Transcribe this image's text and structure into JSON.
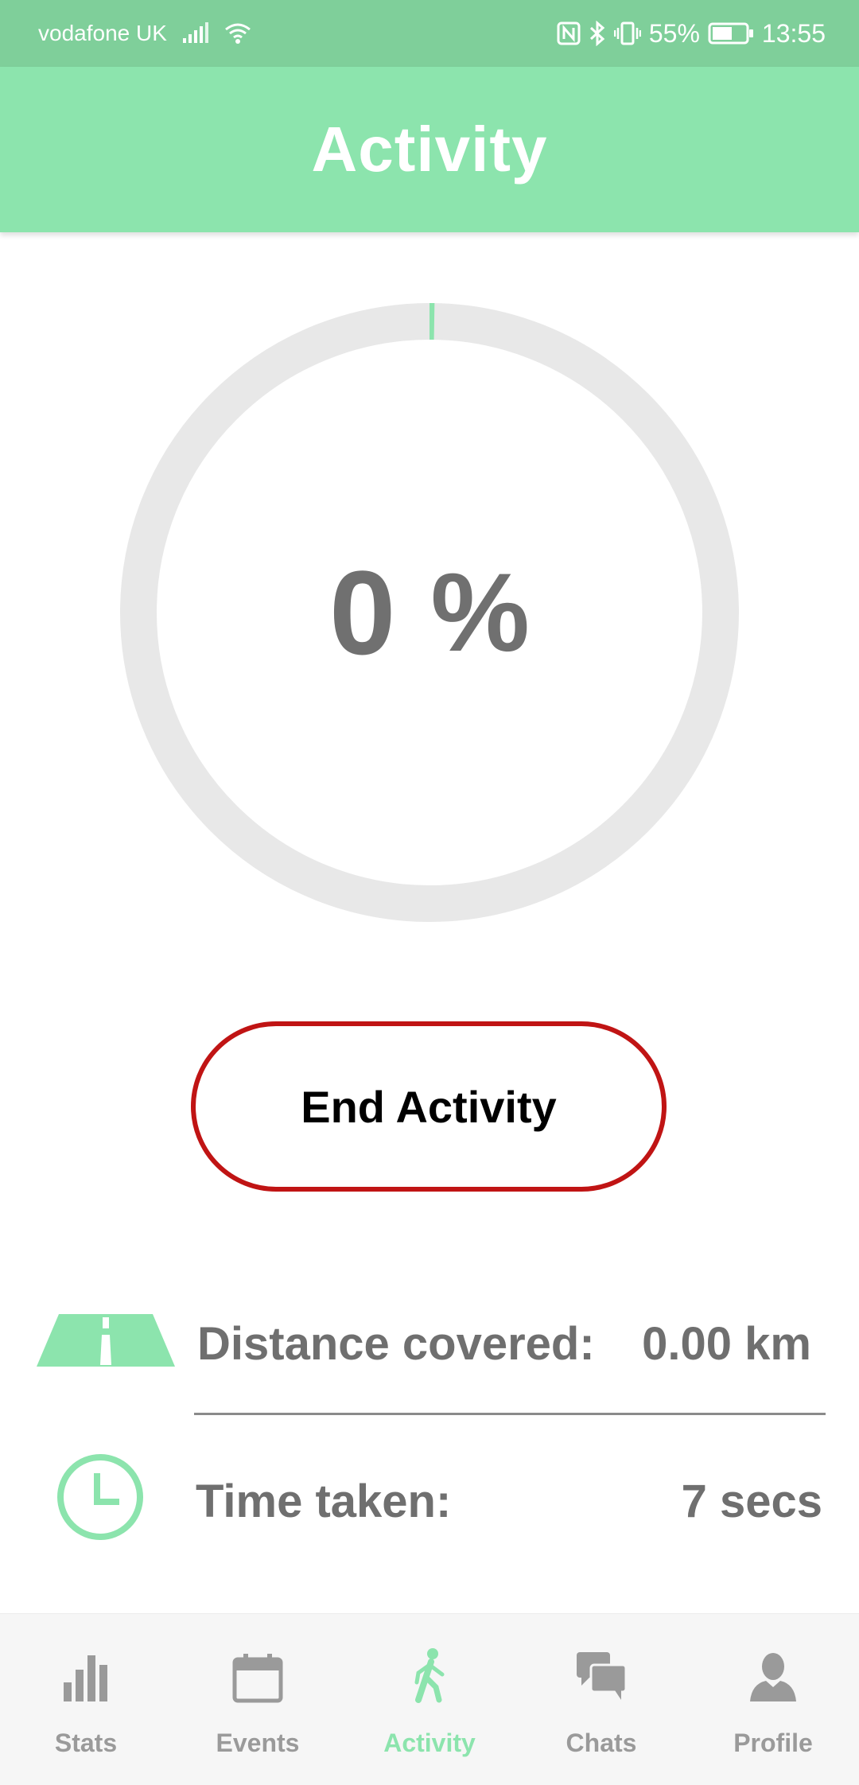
{
  "status_bar": {
    "carrier": "vodafone UK",
    "battery": "55%",
    "time": "13:55"
  },
  "header": {
    "title": "Activity"
  },
  "progress": {
    "value": 0,
    "number_text": "0",
    "symbol": "%"
  },
  "actions": {
    "end_label": "End Activity"
  },
  "stats": {
    "distance": {
      "label": "Distance covered:",
      "value": "0.00 km",
      "icon": "road-icon"
    },
    "time": {
      "label": "Time taken:",
      "value": "7 secs",
      "icon": "clock-icon"
    }
  },
  "nav": {
    "items": [
      {
        "label": "Stats",
        "icon": "bar-chart-icon",
        "active": false
      },
      {
        "label": "Events",
        "icon": "calendar-icon",
        "active": false
      },
      {
        "label": "Activity",
        "icon": "walking-icon",
        "active": true
      },
      {
        "label": "Chats",
        "icon": "chat-bubbles-icon",
        "active": false
      },
      {
        "label": "Profile",
        "icon": "person-icon",
        "active": false
      }
    ]
  },
  "colors": {
    "accent": "#8ce4ad",
    "status_bar": "#7fcf9a",
    "ring_track": "#e8e8e8",
    "end_border": "#c01414",
    "text_grey": "#6f6f6f",
    "nav_inactive": "#9a9a9a"
  }
}
